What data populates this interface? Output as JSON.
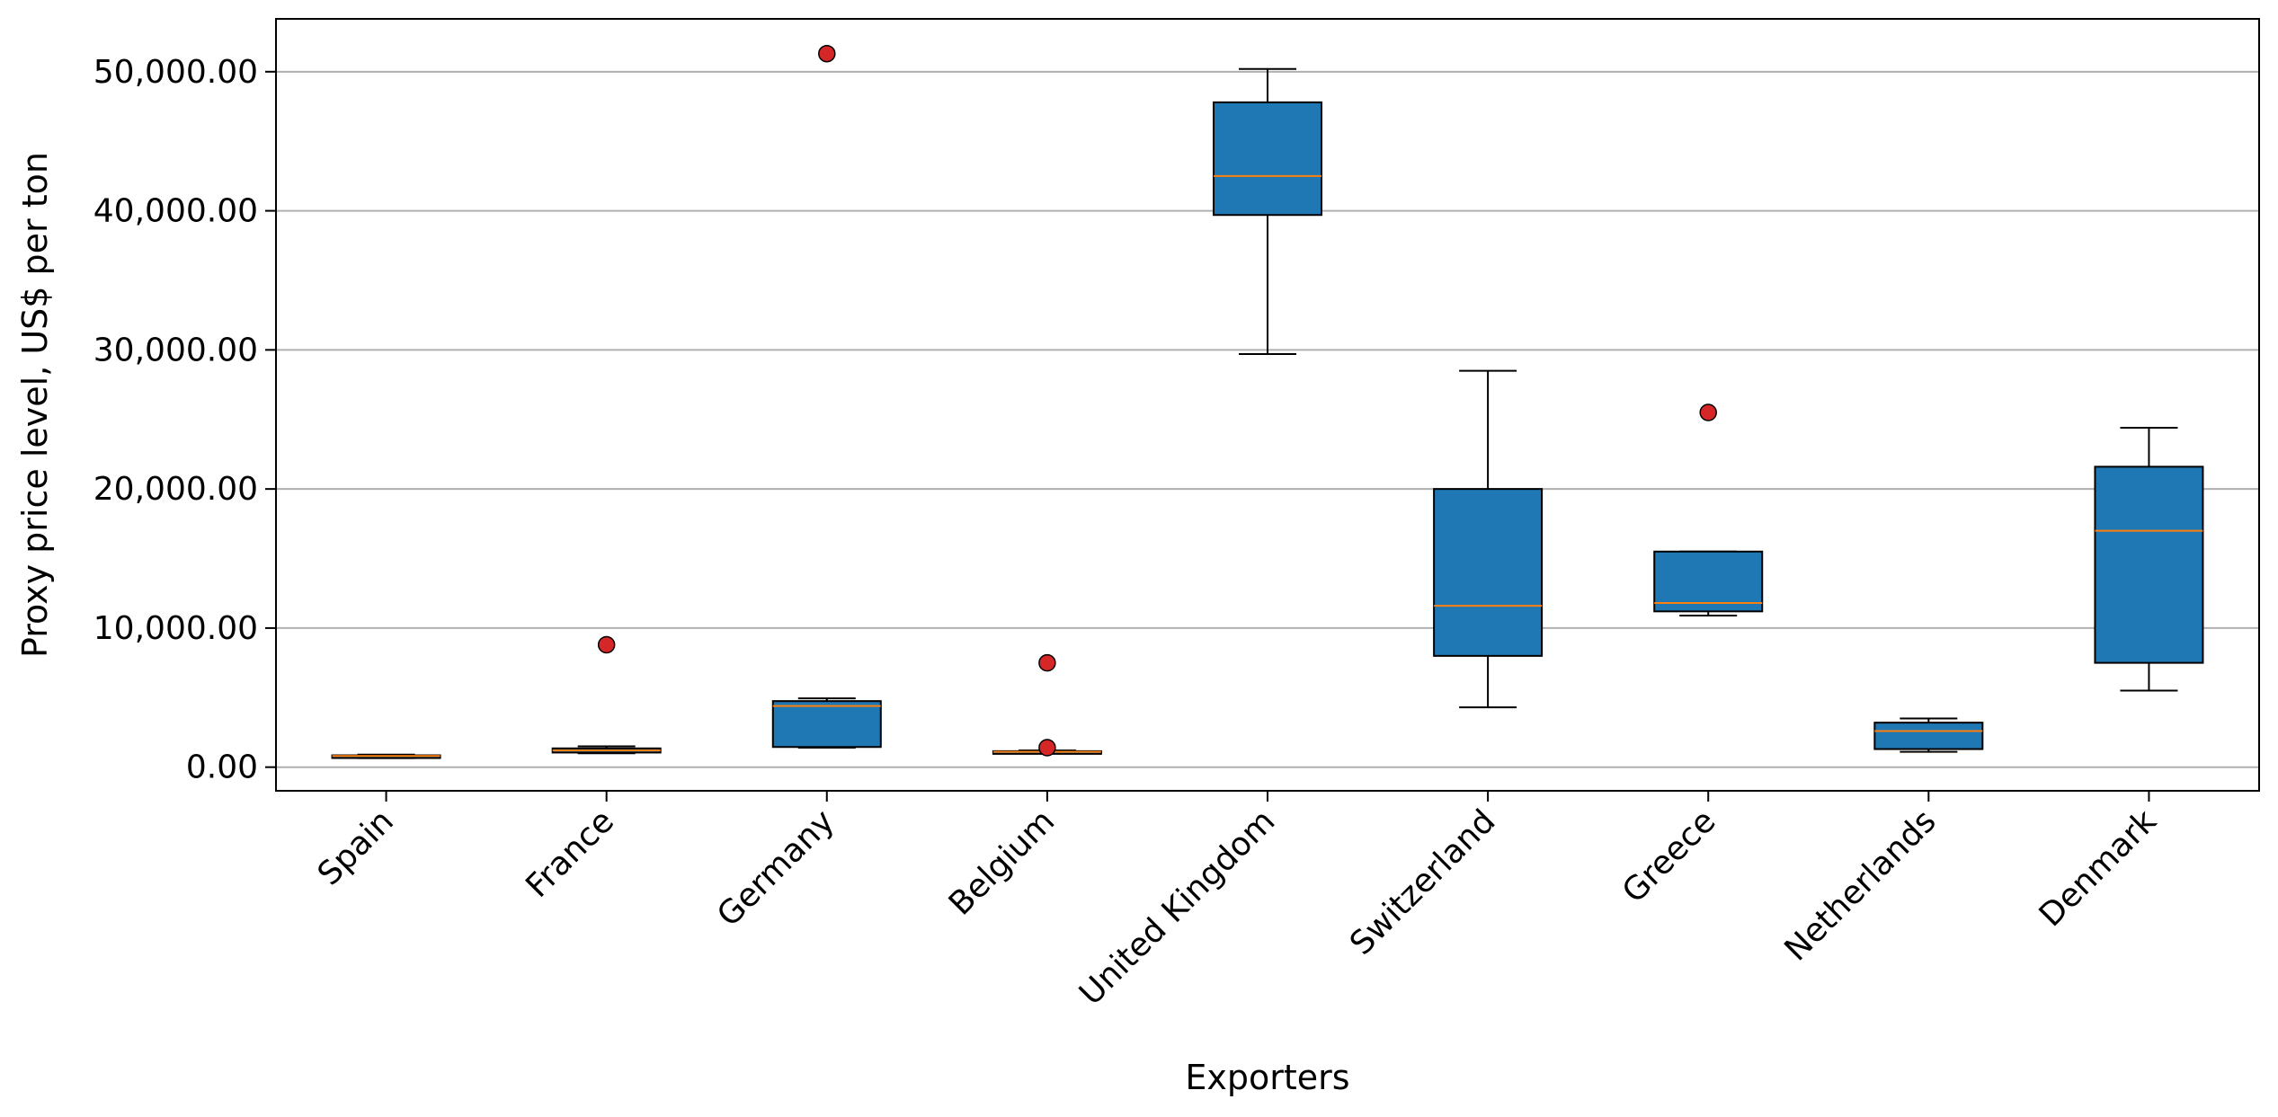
{
  "chart_data": {
    "type": "boxplot",
    "title": "",
    "xlabel": "Exporters",
    "ylabel": "Proxy price level, US$ per ton",
    "ylim": [
      -1700,
      53800
    ],
    "yticks": [
      0,
      10000,
      20000,
      30000,
      40000,
      50000
    ],
    "ytick_labels": [
      "0.00",
      "10,000.00",
      "20,000.00",
      "30,000.00",
      "40,000.00",
      "50,000.00"
    ],
    "grid": "horizontal",
    "colors": {
      "box_fill": "#1f77b4",
      "median": "#ff7f0e",
      "outlier": "#d62728",
      "grid": "#b0b0b0"
    },
    "categories": [
      "Spain",
      "France",
      "Germany",
      "Belgium",
      "United Kingdom",
      "Switzerland",
      "Greece",
      "Netherlands",
      "Denmark"
    ],
    "boxes": [
      {
        "category": "Spain",
        "whisker_low": 650,
        "q1": 700,
        "median": 800,
        "q3": 850,
        "whisker_high": 900,
        "outliers": []
      },
      {
        "category": "France",
        "whisker_low": 1000,
        "q1": 1050,
        "median": 1200,
        "q3": 1350,
        "whisker_high": 1500,
        "outliers": [
          8800
        ]
      },
      {
        "category": "Germany",
        "whisker_low": 1400,
        "q1": 1450,
        "median": 4400,
        "q3": 4750,
        "whisker_high": 4950,
        "outliers": [
          51300
        ]
      },
      {
        "category": "Belgium",
        "whisker_low": 1000,
        "q1": 1050,
        "median": 1100,
        "q3": 1150,
        "whisker_high": 1200,
        "outliers": [
          1400,
          7500
        ]
      },
      {
        "category": "United Kingdom",
        "whisker_low": 29700,
        "q1": 39700,
        "median": 42500,
        "q3": 47800,
        "whisker_high": 50200,
        "outliers": []
      },
      {
        "category": "Switzerland",
        "whisker_low": 4300,
        "q1": 8000,
        "median": 11600,
        "q3": 20000,
        "whisker_high": 28500,
        "outliers": []
      },
      {
        "category": "Greece",
        "whisker_low": 10900,
        "q1": 11200,
        "median": 11800,
        "q3": 15500,
        "whisker_high": 15500,
        "outliers": [
          25500
        ]
      },
      {
        "category": "Netherlands",
        "whisker_low": 1100,
        "q1": 1300,
        "median": 2600,
        "q3": 3200,
        "whisker_high": 3500,
        "outliers": []
      },
      {
        "category": "Denmark",
        "whisker_low": 5500,
        "q1": 7500,
        "median": 17000,
        "q3": 21600,
        "whisker_high": 24400,
        "outliers": []
      }
    ]
  }
}
